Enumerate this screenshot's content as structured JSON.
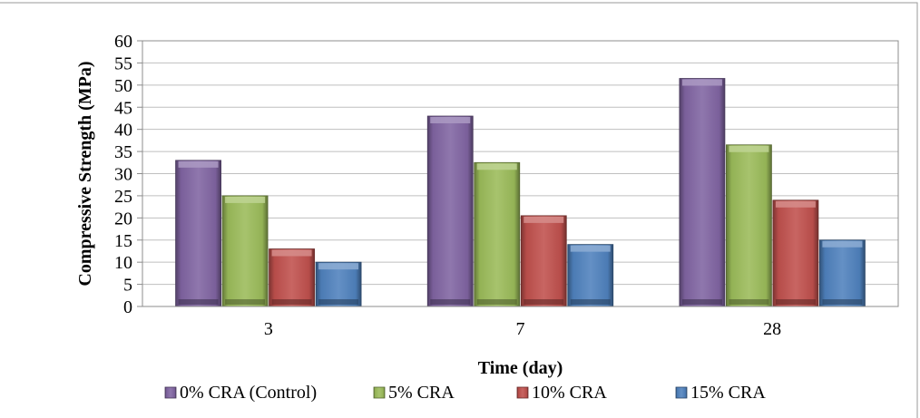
{
  "chart_data": {
    "type": "bar",
    "xlabel": "Time (day)",
    "ylabel": "Compressive Strength (MPa)",
    "categories": [
      "3",
      "7",
      "28"
    ],
    "ylim": [
      0,
      60
    ],
    "yticks": [
      0,
      5,
      10,
      15,
      20,
      25,
      30,
      35,
      40,
      45,
      50,
      55,
      60
    ],
    "grid": "horizontal",
    "legend_position": "bottom",
    "series": [
      {
        "name": "0% CRA (Control)",
        "color": "#8064a2",
        "values": [
          33,
          43,
          51.5
        ]
      },
      {
        "name": "5% CRA",
        "color": "#9bbb59",
        "values": [
          25,
          32.5,
          36.5
        ]
      },
      {
        "name": "10% CRA",
        "color": "#c0504d",
        "values": [
          13,
          20.5,
          24
        ]
      },
      {
        "name": "15% CRA",
        "color": "#4f81bd",
        "values": [
          10,
          14,
          15
        ]
      }
    ]
  }
}
